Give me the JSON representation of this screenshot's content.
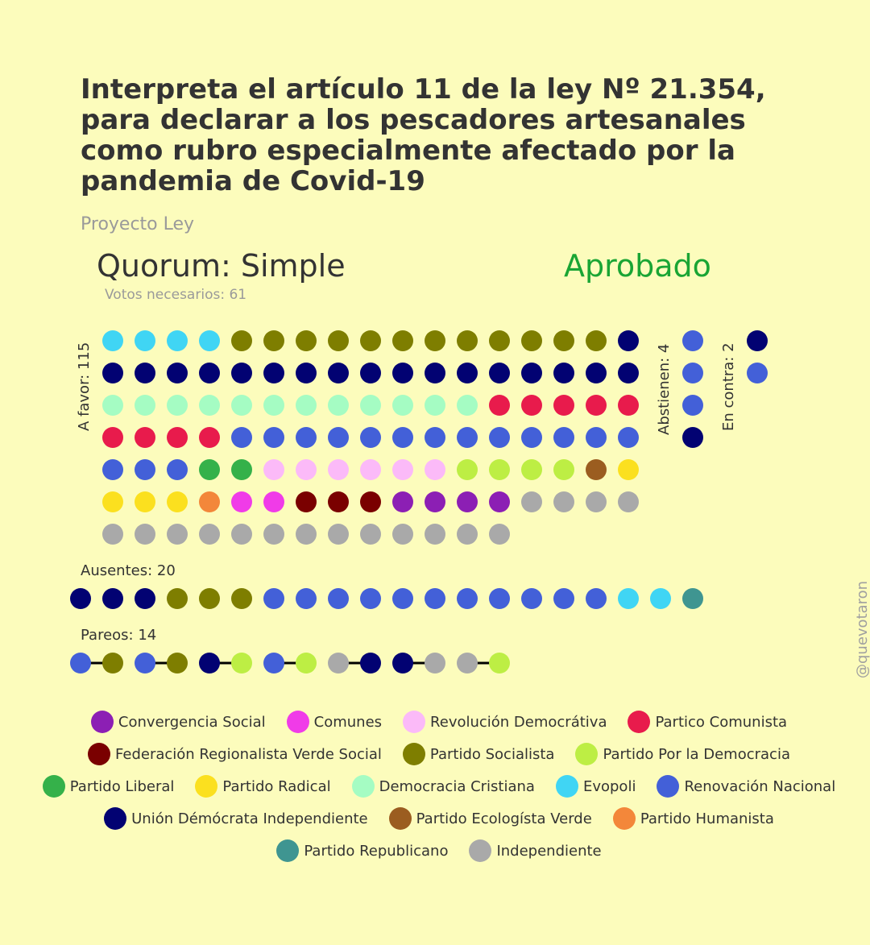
{
  "title": "Interpreta el artículo 11 de la ley Nº 21.354, para declarar a los pescadores artesanales como rubro especialmente afectado por la pandemia de Covid-19",
  "subtitle": "Proyecto Ley",
  "quorum": "Quorum: Simple",
  "votes_needed": "Votos necesarios: 61",
  "result": "Aprobado",
  "watermark": "@quevotaron",
  "colors": {
    "background": "#fcfcbc",
    "result": "#1aa534",
    "title": "#333333",
    "muted": "#9a9a9a"
  },
  "chart_data": {
    "type": "dot-grid",
    "parties": [
      {
        "key": "CS",
        "name": "Convergencia Social",
        "color": "#8c1fb4"
      },
      {
        "key": "COM",
        "name": "Comunes",
        "color": "#f03be8"
      },
      {
        "key": "RD",
        "name": "Revolución Democrátiva",
        "color": "#fbbaf8"
      },
      {
        "key": "PC",
        "name": "Partico Comunista",
        "color": "#e81b4c"
      },
      {
        "key": "FRVS",
        "name": "Federación Regionalista Verde Social",
        "color": "#7a0000"
      },
      {
        "key": "PS",
        "name": "Partido Socialista",
        "color": "#7e7e00"
      },
      {
        "key": "PPD",
        "name": "Partido Por la Democracia",
        "color": "#bdee44"
      },
      {
        "key": "PL",
        "name": "Partido Liberal",
        "color": "#35b14a"
      },
      {
        "key": "PR",
        "name": "Partido Radical",
        "color": "#fbe01f"
      },
      {
        "key": "DC",
        "name": "Democracia Cristiana",
        "color": "#a5fcc3"
      },
      {
        "key": "EVO",
        "name": "Evopoli",
        "color": "#40d5f4"
      },
      {
        "key": "RN",
        "name": "Renovación Nacional",
        "color": "#4360d8"
      },
      {
        "key": "UDI",
        "name": "Unión Démócrata Independiente",
        "color": "#020272"
      },
      {
        "key": "PEV",
        "name": "Partido Ecologísta Verde",
        "color": "#9b5d20"
      },
      {
        "key": "PH",
        "name": "Partido Humanista",
        "color": "#f3873a"
      },
      {
        "key": "REP",
        "name": "Partido Republicano",
        "color": "#3f9591"
      },
      {
        "key": "IND",
        "name": "Independiente",
        "color": "#a9a9a9"
      }
    ],
    "legend_rows": [
      [
        "CS",
        "COM",
        "RD",
        "PC"
      ],
      [
        "FRVS",
        "PS",
        "PPD"
      ],
      [
        "PL",
        "PR",
        "DC",
        "EVO",
        "RN"
      ],
      [
        "UDI",
        "PEV",
        "PH"
      ],
      [
        "REP",
        "IND"
      ]
    ],
    "a_favor": {
      "label": "A favor: 115",
      "count": 115,
      "rows": [
        [
          "EVO",
          "EVO",
          "EVO",
          "EVO",
          "PS",
          "PS",
          "PS",
          "PS",
          "PS",
          "PS",
          "PS",
          "PS",
          "PS",
          "PS",
          "PS",
          "PS",
          "UDI"
        ],
        [
          "UDI",
          "UDI",
          "UDI",
          "UDI",
          "UDI",
          "UDI",
          "UDI",
          "UDI",
          "UDI",
          "UDI",
          "UDI",
          "UDI",
          "UDI",
          "UDI",
          "UDI",
          "UDI",
          "UDI"
        ],
        [
          "DC",
          "DC",
          "DC",
          "DC",
          "DC",
          "DC",
          "DC",
          "DC",
          "DC",
          "DC",
          "DC",
          "DC",
          "PC",
          "PC",
          "PC",
          "PC",
          "PC"
        ],
        [
          "PC",
          "PC",
          "PC",
          "PC",
          "RN",
          "RN",
          "RN",
          "RN",
          "RN",
          "RN",
          "RN",
          "RN",
          "RN",
          "RN",
          "RN",
          "RN",
          "RN"
        ],
        [
          "RN",
          "RN",
          "RN",
          "PL",
          "PL",
          "RD",
          "RD",
          "RD",
          "RD",
          "RD",
          "RD",
          "PPD",
          "PPD",
          "PPD",
          "PPD",
          "PEV",
          "PR"
        ],
        [
          "PR",
          "PR",
          "PR",
          "PH",
          "COM",
          "COM",
          "FRVS",
          "FRVS",
          "FRVS",
          "CS",
          "CS",
          "CS",
          "CS",
          "IND",
          "IND",
          "IND",
          "IND"
        ],
        [
          "IND",
          "IND",
          "IND",
          "IND",
          "IND",
          "IND",
          "IND",
          "IND",
          "IND",
          "IND",
          "IND",
          "IND",
          "IND"
        ]
      ]
    },
    "abstienen": {
      "label": "Abstienen: 4",
      "count": 4,
      "dots": [
        "RN",
        "RN",
        "RN",
        "UDI"
      ]
    },
    "en_contra": {
      "label": "En contra: 2",
      "count": 2,
      "dots": [
        "UDI",
        "RN"
      ]
    },
    "ausentes": {
      "label": "Ausentes: 20",
      "count": 20,
      "dots": [
        "UDI",
        "UDI",
        "UDI",
        "PS",
        "PS",
        "PS",
        "RN",
        "RN",
        "RN",
        "RN",
        "RN",
        "RN",
        "RN",
        "RN",
        "RN",
        "RN",
        "RN",
        "EVO",
        "EVO",
        "REP"
      ]
    },
    "pareos": {
      "label": "Pareos: 14",
      "count": 14,
      "pairs": [
        [
          "RN",
          "PS"
        ],
        [
          "RN",
          "PS"
        ],
        [
          "UDI",
          "PPD"
        ],
        [
          "RN",
          "PPD"
        ],
        [
          "IND",
          "UDI"
        ],
        [
          "UDI",
          "IND"
        ],
        [
          "IND",
          "PPD"
        ]
      ]
    }
  }
}
